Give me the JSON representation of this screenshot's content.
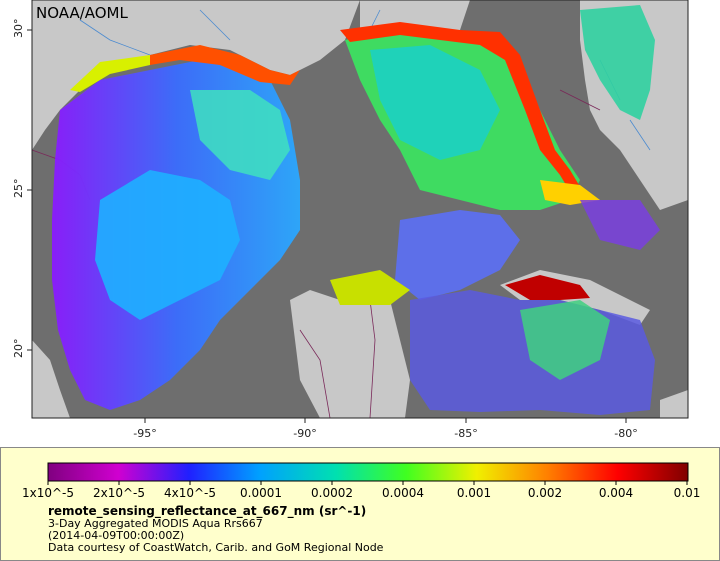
{
  "map": {
    "credit": "NOAA/AOML",
    "lat_ticks": [
      "30°",
      "25°",
      "20°"
    ],
    "lon_ticks": [
      "-95°",
      "-90°",
      "-85°",
      "-80°"
    ]
  },
  "colorbar": {
    "labels": [
      "1x10^-5",
      "2x10^-5",
      "4x10^-5",
      "0.0001",
      "0.0002",
      "0.0004",
      "0.001",
      "0.002",
      "0.004",
      "0.01"
    ],
    "colors": [
      "#800080",
      "#c000c0",
      "#1a1aff",
      "#00a8ff",
      "#00e0a0",
      "#40ff40",
      "#ffe000",
      "#ff8000",
      "#ff0000",
      "#8b0000"
    ]
  },
  "legend": {
    "variable": "remote_sensing_reflectance_at_667_nm (sr^-1)",
    "product": "3-Day Aggregated MODIS Aqua Rrs667",
    "time": "(2014-04-09T00:00:00Z)",
    "courtesy": "Data courtesy of CoastWatch, Carib. and GoM Regional Node"
  }
}
